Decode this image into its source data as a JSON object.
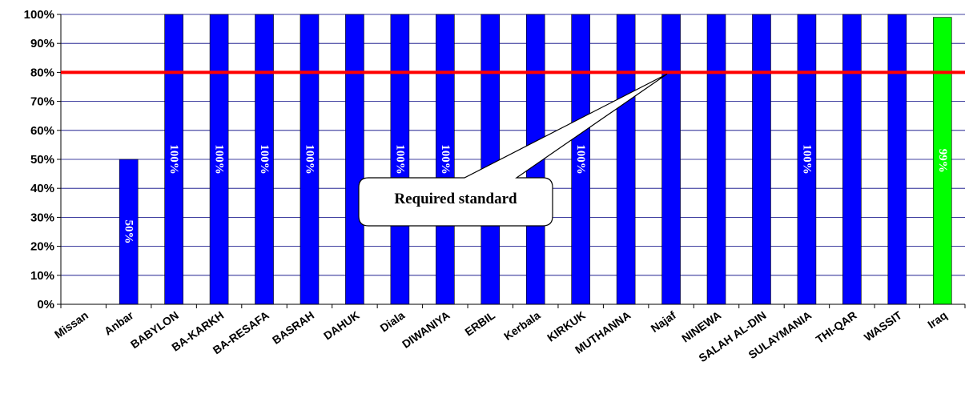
{
  "chart_data": {
    "type": "bar",
    "categories": [
      "Missan",
      "Anbar",
      "BABYLON",
      "BA-KARKH",
      "BA-RESAFA",
      "BASRAH",
      "DAHUK",
      "Diala",
      "DIWANIYA",
      "ERBIL",
      "Kerbala",
      "KIRKUK",
      "MUTHANNA",
      "Najaf",
      "NINEWA",
      "SALAH AL-DIN",
      "SULAYMANIA",
      "THI-QAR",
      "WASSIT",
      "Iraq"
    ],
    "values": [
      0,
      50,
      100,
      100,
      100,
      100,
      100,
      100,
      100,
      100,
      100,
      100,
      100,
      100,
      100,
      100,
      100,
      100,
      100,
      99
    ],
    "data_labels": [
      "",
      "50%",
      "100%",
      "100%",
      "100%",
      "100%",
      "",
      "100%",
      "100%",
      "",
      "",
      "100%",
      "",
      "",
      "",
      "",
      "100%",
      "",
      "",
      "99%"
    ],
    "colors": [
      "#0000ff",
      "#0000ff",
      "#0000ff",
      "#0000ff",
      "#0000ff",
      "#0000ff",
      "#0000ff",
      "#0000ff",
      "#0000ff",
      "#0000ff",
      "#0000ff",
      "#0000ff",
      "#0000ff",
      "#0000ff",
      "#0000ff",
      "#0000ff",
      "#0000ff",
      "#0000ff",
      "#0000ff",
      "#00ff00"
    ],
    "ylim": [
      0,
      100
    ],
    "yticks": [
      "0%",
      "10%",
      "20%",
      "30%",
      "40%",
      "50%",
      "60%",
      "70%",
      "80%",
      "90%",
      "100%"
    ],
    "grid": true,
    "reference_line": {
      "value": 80,
      "color": "#ff0000",
      "label": "Required standard"
    },
    "title": "",
    "xlabel": "",
    "ylabel": ""
  }
}
